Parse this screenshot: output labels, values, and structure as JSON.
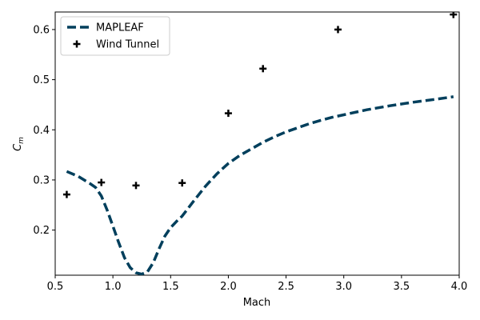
{
  "chart_data": {
    "type": "line",
    "title": "",
    "xlabel": "Mach",
    "ylabel_main": "C",
    "ylabel_sub": "m",
    "xlim": [
      0.5,
      4.0
    ],
    "ylim": [
      0.11,
      0.635
    ],
    "xticks": [
      0.5,
      1.0,
      1.5,
      2.0,
      2.5,
      3.0,
      3.5,
      4.0
    ],
    "xtick_labels": [
      "0.5",
      "1.0",
      "1.5",
      "2.0",
      "2.5",
      "3.0",
      "3.5",
      "4.0"
    ],
    "yticks": [
      0.2,
      0.3,
      0.4,
      0.5,
      0.6
    ],
    "ytick_labels": [
      "0.2",
      "0.3",
      "0.4",
      "0.5",
      "0.6"
    ],
    "grid": false,
    "legend_position": "top-left",
    "series": [
      {
        "name": "MAPLEAF",
        "style": "dashed-line",
        "color": "#003f5c",
        "x": [
          0.6,
          0.7,
          0.8,
          0.85,
          0.9,
          0.95,
          1.0,
          1.05,
          1.1,
          1.15,
          1.2,
          1.25,
          1.3,
          1.35,
          1.4,
          1.45,
          1.5,
          1.55,
          1.6,
          1.7,
          1.8,
          1.9,
          2.0,
          2.1,
          2.2,
          2.3,
          2.4,
          2.5,
          2.6,
          2.7,
          2.8,
          2.9,
          3.0,
          3.2,
          3.4,
          3.6,
          3.8,
          3.95
        ],
        "y": [
          0.317,
          0.307,
          0.293,
          0.285,
          0.268,
          0.24,
          0.208,
          0.175,
          0.145,
          0.125,
          0.115,
          0.112,
          0.117,
          0.135,
          0.163,
          0.188,
          0.205,
          0.217,
          0.228,
          0.258,
          0.287,
          0.312,
          0.333,
          0.349,
          0.362,
          0.375,
          0.386,
          0.396,
          0.404,
          0.412,
          0.419,
          0.425,
          0.43,
          0.44,
          0.448,
          0.455,
          0.461,
          0.466
        ]
      },
      {
        "name": "Wind Tunnel",
        "style": "plus-marker",
        "color": "#000000",
        "x": [
          0.6,
          0.9,
          1.2,
          1.6,
          2.0,
          2.3,
          2.95,
          3.95
        ],
        "y": [
          0.271,
          0.295,
          0.289,
          0.294,
          0.433,
          0.522,
          0.6,
          0.63
        ]
      }
    ]
  }
}
